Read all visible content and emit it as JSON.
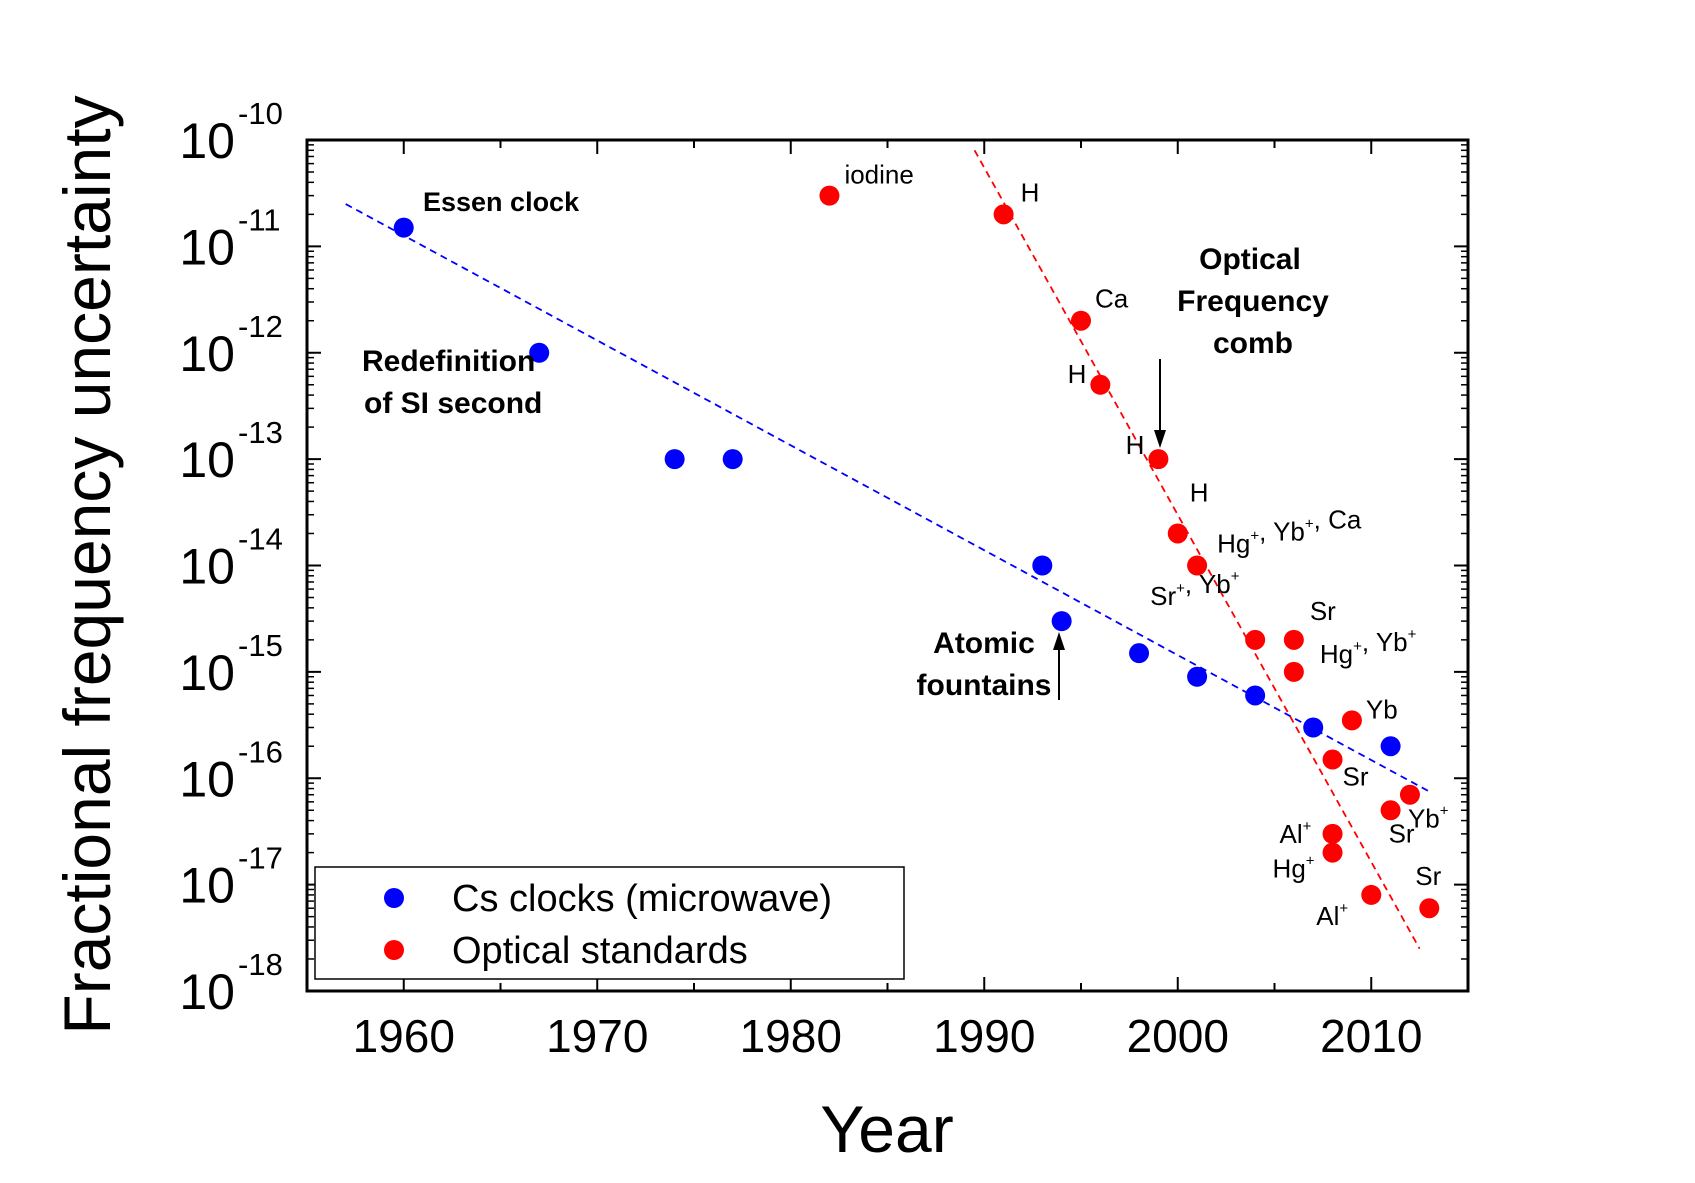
{
  "chart_data": {
    "type": "scatter",
    "xlabel": "Year",
    "ylabel": "Fractional frequency uncertainty",
    "xlim": [
      1955,
      2015
    ],
    "ylim_log10": [
      -18,
      -10
    ],
    "x_ticks": [
      1960,
      1970,
      1980,
      1990,
      2000,
      2010
    ],
    "y_ticks": [
      {
        "base": "10",
        "exp": "-10",
        "value": -10
      },
      {
        "base": "10",
        "exp": "-11",
        "value": -11
      },
      {
        "base": "10",
        "exp": "-12",
        "value": -12
      },
      {
        "base": "10",
        "exp": "-13",
        "value": -13
      },
      {
        "base": "10",
        "exp": "-14",
        "value": -14
      },
      {
        "base": "10",
        "exp": "-15",
        "value": -15
      },
      {
        "base": "10",
        "exp": "-16",
        "value": -16
      },
      {
        "base": "10",
        "exp": "-17",
        "value": -17
      },
      {
        "base": "10",
        "exp": "-18",
        "value": -18
      }
    ],
    "series": [
      {
        "name": "Cs clocks (microwave)",
        "color": "#0000ff",
        "points": [
          {
            "x": 1960,
            "y": 1.5e-11
          },
          {
            "x": 1967,
            "y": 1e-12
          },
          {
            "x": 1974,
            "y": 1e-13
          },
          {
            "x": 1977,
            "y": 1e-13
          },
          {
            "x": 1993,
            "y": 1e-14
          },
          {
            "x": 1994,
            "y": 3e-15
          },
          {
            "x": 1998,
            "y": 1.5e-15
          },
          {
            "x": 2001,
            "y": 9e-16
          },
          {
            "x": 2004,
            "y": 6e-16
          },
          {
            "x": 2007,
            "y": 3e-16
          },
          {
            "x": 2011,
            "y": 2e-16
          }
        ],
        "trend": {
          "x": [
            1957,
            2013
          ],
          "y": [
            2.5e-11,
            7.5e-17
          ]
        }
      },
      {
        "name": "Optical standards",
        "color": "#ff0000",
        "points": [
          {
            "x": 1982,
            "y": 3e-11,
            "label": "iodine"
          },
          {
            "x": 1991,
            "y": 2e-11,
            "label": "H"
          },
          {
            "x": 1995,
            "y": 2e-12,
            "label": "Ca"
          },
          {
            "x": 1996,
            "y": 5e-13,
            "label": "H"
          },
          {
            "x": 1999,
            "y": 1e-13,
            "label": "H"
          },
          {
            "x": 2000,
            "y": 2e-14,
            "label": "H"
          },
          {
            "x": 2001,
            "y": 1e-14,
            "label": "Hg+, Yb+, Ca"
          },
          {
            "x": 2004,
            "y": 2e-15,
            "label": "Sr+, Yb+"
          },
          {
            "x": 2006,
            "y": 2e-15,
            "label": "Sr"
          },
          {
            "x": 2006,
            "y": 1e-15,
            "label": "Hg+, Yb+"
          },
          {
            "x": 2009,
            "y": 3.5e-16,
            "label": "Yb"
          },
          {
            "x": 2008,
            "y": 1.5e-16,
            "label": "Sr"
          },
          {
            "x": 2012,
            "y": 7e-17,
            "label": "Yb+"
          },
          {
            "x": 2011,
            "y": 5e-17,
            "label": "Sr"
          },
          {
            "x": 2008,
            "y": 3e-17,
            "label": "Al+"
          },
          {
            "x": 2008,
            "y": 2e-17,
            "label": "Hg+"
          },
          {
            "x": 2010,
            "y": 8e-18,
            "label": "Al+"
          },
          {
            "x": 2013,
            "y": 6e-18,
            "label": "Sr"
          }
        ],
        "trend": {
          "x": [
            1989.5,
            2012.5
          ],
          "y": [
            8e-11,
            2.5e-18
          ]
        }
      }
    ],
    "annotations": {
      "essen": "Essen clock",
      "iodine": "iodine",
      "redef": [
        "Redefinition",
        "of SI second"
      ],
      "comb": [
        "Optical",
        "Frequency",
        "comb"
      ],
      "fountains": [
        "Atomic",
        "fountains"
      ]
    },
    "legend": {
      "placement": "bottom-left"
    }
  }
}
